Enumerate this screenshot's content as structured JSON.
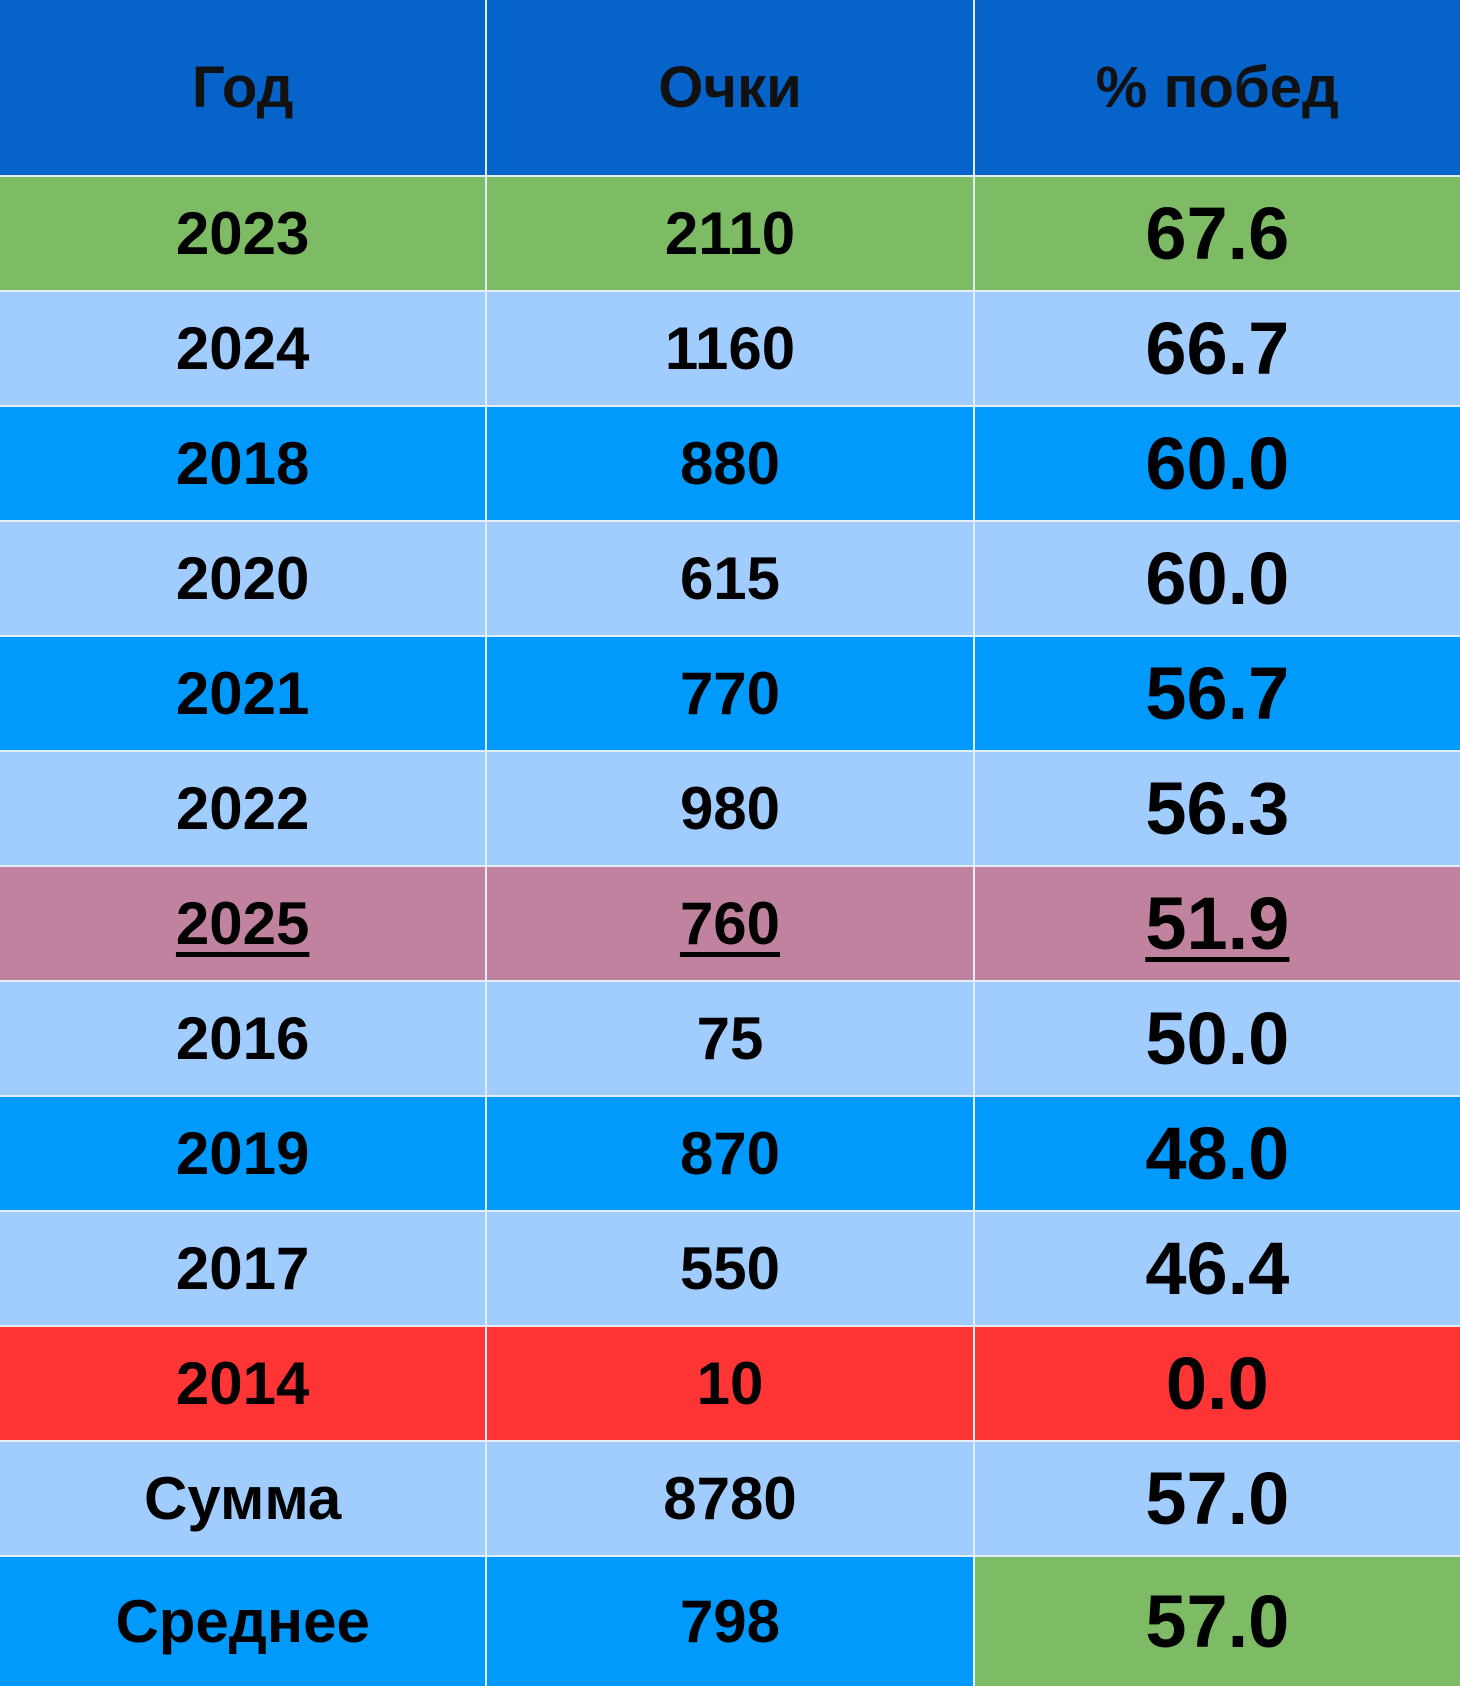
{
  "table": {
    "header": [
      "Год",
      "Очки",
      "% побед"
    ],
    "rows": [
      [
        "2023",
        "2110",
        "67.6"
      ],
      [
        "2024",
        "1160",
        "66.7"
      ],
      [
        "2018",
        "880",
        "60.0"
      ],
      [
        "2020",
        "615",
        "60.0"
      ],
      [
        "2021",
        "770",
        "56.7"
      ],
      [
        "2022",
        "980",
        "56.3"
      ],
      [
        "2025",
        "760",
        "51.9"
      ],
      [
        "2016",
        "75",
        "50.0"
      ],
      [
        "2019",
        "870",
        "48.0"
      ],
      [
        "2017",
        "550",
        "46.4"
      ],
      [
        "2014",
        "10",
        "0.0"
      ],
      [
        "Сумма",
        "8780",
        "57.0"
      ],
      [
        "Среднее",
        "798",
        "57.0"
      ]
    ]
  }
}
